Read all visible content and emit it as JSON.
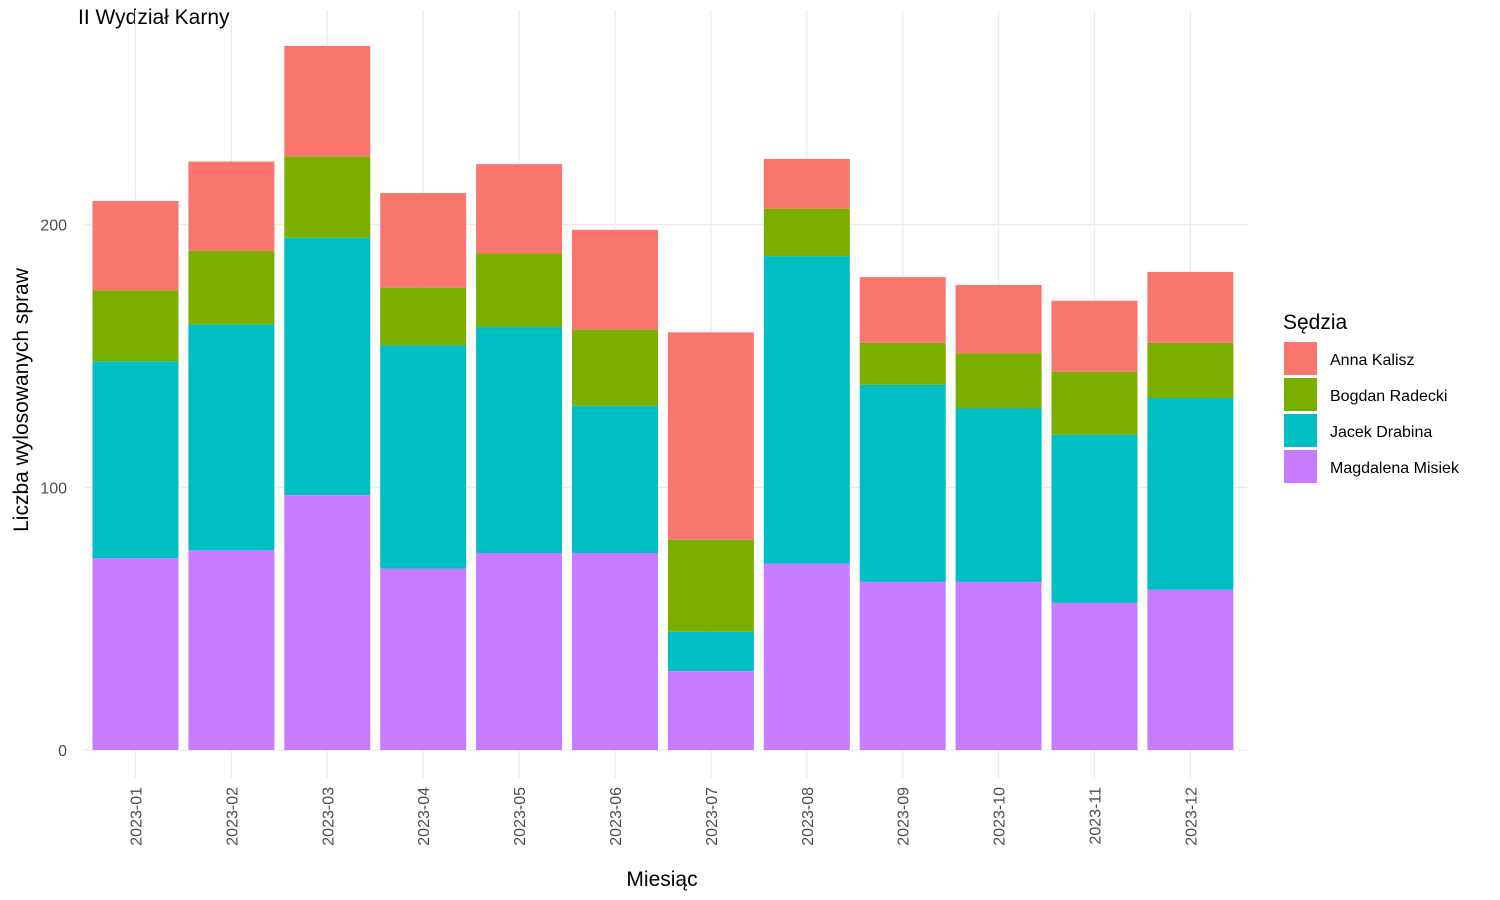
{
  "chart_data": {
    "type": "bar",
    "stacked": true,
    "title": "II Wydział Karny",
    "xlabel": "Miesiąc",
    "ylabel": "Liczba wylosowanych spraw",
    "ylim": [
      0,
      270
    ],
    "yticks": [
      0,
      100,
      200
    ],
    "grid": true,
    "legend_title": "Sędzia",
    "legend_position": "right",
    "categories": [
      "2023-01",
      "2023-02",
      "2023-03",
      "2023-04",
      "2023-05",
      "2023-06",
      "2023-07",
      "2023-08",
      "2023-09",
      "2023-10",
      "2023-11",
      "2023-12"
    ],
    "series": [
      {
        "name": "Magdalena Misiek",
        "color": "#C77CFF",
        "values": [
          73,
          76,
          97,
          69,
          75,
          75,
          30,
          71,
          64,
          64,
          56,
          61
        ]
      },
      {
        "name": "Jacek Drabina",
        "color": "#00BFC4",
        "values": [
          75,
          86,
          98,
          85,
          86,
          56,
          15,
          117,
          75,
          66,
          64,
          73
        ]
      },
      {
        "name": "Bogdan Radecki",
        "color": "#7CAE00",
        "values": [
          27,
          28,
          31,
          22,
          28,
          29,
          35,
          18,
          16,
          21,
          24,
          21
        ]
      },
      {
        "name": "Anna Kalisz",
        "color": "#F8766D",
        "values": [
          34,
          34,
          42,
          36,
          34,
          38,
          79,
          19,
          25,
          26,
          27,
          27
        ]
      }
    ],
    "legend_order": [
      "Anna Kalisz",
      "Bogdan Radecki",
      "Jacek Drabina",
      "Magdalena Misiek"
    ]
  }
}
